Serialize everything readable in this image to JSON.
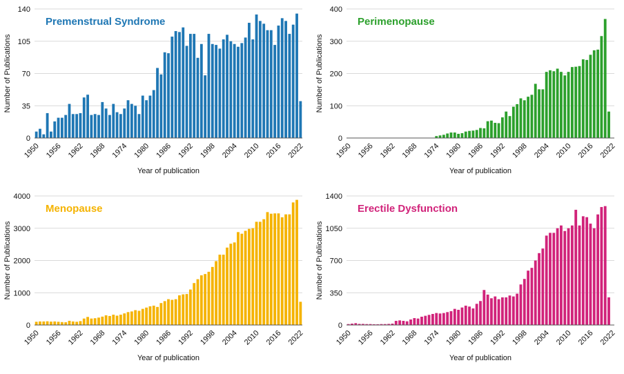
{
  "chart_data": [
    {
      "type": "bar",
      "title": "Premenstrual Syndrome",
      "color": "#1f77b4",
      "xlabel": "Year of publication",
      "ylabel": "Number of Publications",
      "ylim": [
        0,
        140
      ],
      "yticks": [
        "0",
        "35",
        "70",
        "105",
        "140"
      ],
      "xticks": [
        "1950",
        "1956",
        "1962",
        "1968",
        "1974",
        "1980",
        "1986",
        "1992",
        "1998",
        "2004",
        "2010",
        "2016",
        "2022"
      ],
      "x_start": 1950,
      "x_end": 2022,
      "grid": true,
      "values": [
        7,
        10,
        4,
        27,
        7,
        18,
        22,
        22,
        25,
        37,
        26,
        26,
        27,
        44,
        47,
        25,
        26,
        25,
        39,
        32,
        25,
        37,
        28,
        26,
        32,
        41,
        37,
        35,
        26,
        46,
        41,
        46,
        52,
        76,
        69,
        93,
        92,
        110,
        116,
        115,
        120,
        100,
        113,
        113,
        87,
        102,
        68,
        113,
        102,
        101,
        97,
        107,
        112,
        105,
        102,
        99,
        103,
        109,
        125,
        107,
        134,
        127,
        124,
        117,
        117,
        101,
        122,
        130,
        127,
        113,
        123,
        135,
        40
      ]
    },
    {
      "type": "bar",
      "title": "Perimenopause",
      "color": "#2ca02c",
      "xlabel": "Year of publication",
      "ylabel": "Number of Publications",
      "ylim": [
        0,
        400
      ],
      "yticks": [
        "0",
        "100",
        "200",
        "300",
        "400"
      ],
      "xticks": [
        "1950",
        "1956",
        "1962",
        "1968",
        "1974",
        "1980",
        "1986",
        "1992",
        "1998",
        "2004",
        "2010",
        "2016",
        "2022"
      ],
      "x_start": 1950,
      "x_end": 2022,
      "grid": true,
      "values": [
        1,
        1,
        1,
        1,
        1,
        1,
        1,
        1,
        1,
        1,
        1,
        1,
        1,
        1,
        1,
        1,
        1,
        1,
        1,
        1,
        1,
        1,
        1,
        1,
        6,
        8,
        10,
        14,
        17,
        17,
        13,
        15,
        20,
        22,
        23,
        25,
        31,
        30,
        52,
        54,
        47,
        46,
        64,
        82,
        68,
        97,
        105,
        123,
        117,
        128,
        134,
        168,
        151,
        151,
        205,
        210,
        207,
        215,
        205,
        194,
        205,
        220,
        221,
        223,
        244,
        242,
        258,
        272,
        274,
        316,
        369,
        82,
        0
      ]
    },
    {
      "type": "bar",
      "title": "Menopause",
      "color": "#f5b301",
      "xlabel": "Year of publication",
      "ylabel": "Number of Publications",
      "ylim": [
        0,
        4000
      ],
      "yticks": [
        "0",
        "1000",
        "2000",
        "3000",
        "4000"
      ],
      "xticks": [
        "1950",
        "1956",
        "1962",
        "1968",
        "1974",
        "1980",
        "1986",
        "1992",
        "1998",
        "2004",
        "2010",
        "2016",
        "2022"
      ],
      "x_start": 1950,
      "x_end": 2022,
      "grid": true,
      "values": [
        100,
        110,
        110,
        115,
        105,
        110,
        100,
        90,
        85,
        130,
        110,
        100,
        120,
        200,
        250,
        200,
        210,
        230,
        260,
        300,
        280,
        320,
        290,
        320,
        360,
        400,
        420,
        460,
        440,
        500,
        540,
        580,
        600,
        560,
        680,
        740,
        800,
        780,
        800,
        920,
        950,
        960,
        1100,
        1300,
        1420,
        1540,
        1580,
        1650,
        1800,
        1980,
        2180,
        2180,
        2400,
        2520,
        2560,
        2880,
        2830,
        2920,
        2980,
        3000,
        3200,
        3200,
        3280,
        3500,
        3450,
        3460,
        3460,
        3340,
        3430,
        3430,
        3800,
        3880,
        720
      ]
    },
    {
      "type": "bar",
      "title": "Erectile Dysfunction",
      "color": "#d1237a",
      "xlabel": "Year of publication",
      "ylabel": "Number of Publications",
      "ylim": [
        0,
        1400
      ],
      "yticks": [
        "0",
        "350",
        "700",
        "1050",
        "1400"
      ],
      "xticks": [
        "1950",
        "1956",
        "1962",
        "1968",
        "1974",
        "1980",
        "1986",
        "1992",
        "1998",
        "2004",
        "2010",
        "2016",
        "2022"
      ],
      "x_start": 1950,
      "x_end": 2022,
      "grid": true,
      "values": [
        10,
        15,
        20,
        12,
        12,
        10,
        10,
        8,
        8,
        10,
        10,
        12,
        15,
        45,
        50,
        45,
        40,
        60,
        75,
        70,
        90,
        100,
        110,
        120,
        130,
        125,
        130,
        140,
        150,
        175,
        165,
        190,
        210,
        200,
        180,
        230,
        260,
        380,
        330,
        290,
        310,
        280,
        300,
        300,
        320,
        310,
        340,
        440,
        500,
        590,
        620,
        700,
        780,
        830,
        970,
        1000,
        1000,
        1050,
        1080,
        1020,
        1050,
        1080,
        1250,
        1080,
        1180,
        1170,
        1100,
        1050,
        1200,
        1280,
        1290,
        300,
        0
      ]
    }
  ]
}
